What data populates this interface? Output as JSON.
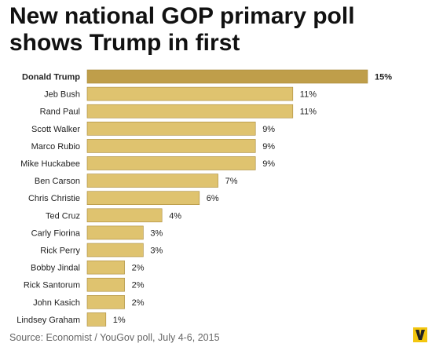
{
  "title_lines": [
    "New national GOP primary poll",
    "shows Trump in first"
  ],
  "source": "Source: Economist / YouGov poll, July 4-6, 2015",
  "colors": {
    "highlight_bar": "#bf9e4a",
    "bar": "#dfc36f",
    "bar_stroke": "#a8893a",
    "logo": "#f3c60f"
  },
  "icons": {
    "logo": "vox-logo"
  },
  "chart_data": {
    "type": "bar",
    "orientation": "horizontal",
    "title": "New national GOP primary poll shows Trump in first",
    "categories": [
      "Donald Trump",
      "Jeb Bush",
      "Rand Paul",
      "Scott Walker",
      "Marco Rubio",
      "Mike Huckabee",
      "Ben Carson",
      "Chris Christie",
      "Ted Cruz",
      "Carly Fiorina",
      "Rick Perry",
      "Bobby Jindal",
      "Rick Santorum",
      "John Kasich",
      "Lindsey Graham"
    ],
    "values": [
      15,
      11,
      11,
      9,
      9,
      9,
      7,
      6,
      4,
      3,
      3,
      2,
      2,
      2,
      1
    ],
    "value_labels": [
      "15%",
      "11%",
      "11%",
      "9%",
      "9%",
      "9%",
      "7%",
      "6%",
      "4%",
      "3%",
      "3%",
      "2%",
      "2%",
      "2%",
      "1%"
    ],
    "highlighted": "Donald Trump",
    "xlim": [
      0,
      15
    ],
    "grid": false,
    "legend": "none",
    "xlabel": "",
    "ylabel": ""
  }
}
